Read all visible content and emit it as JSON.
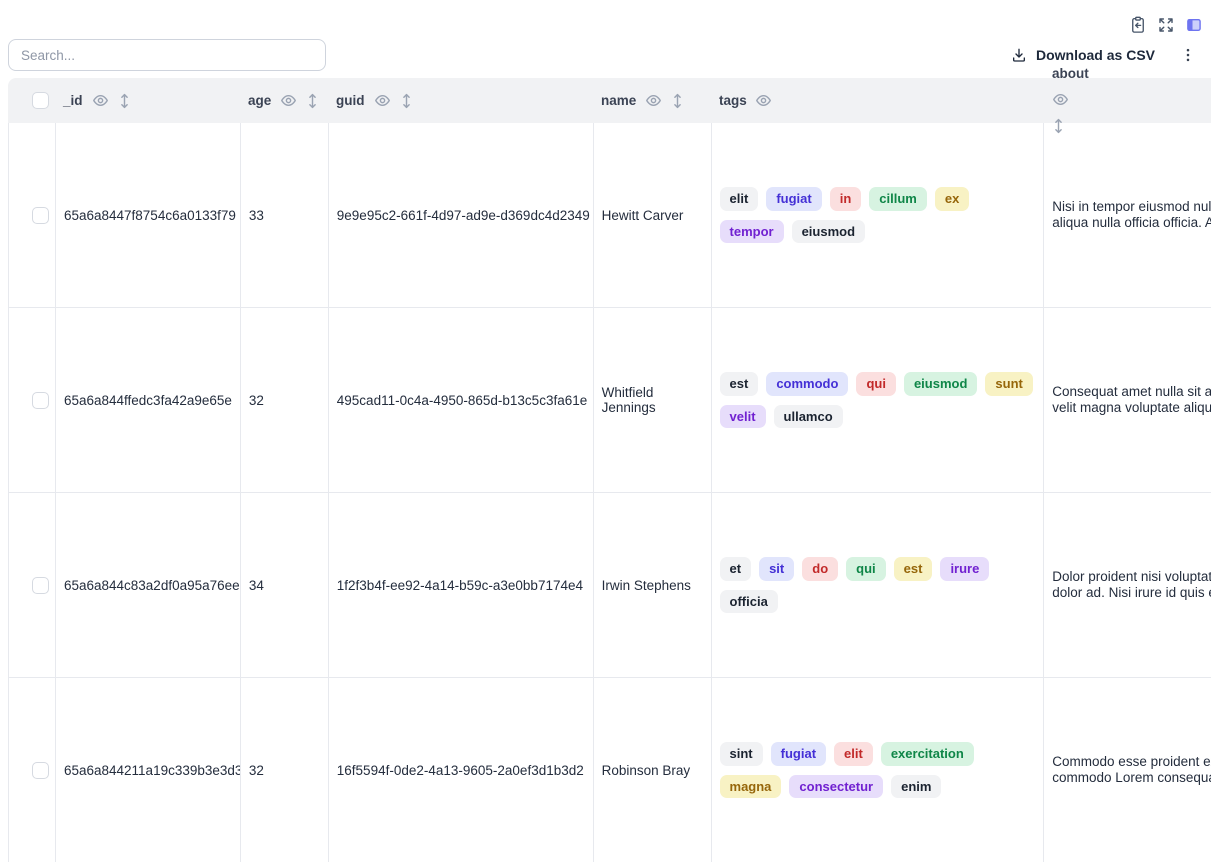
{
  "topbar": {
    "icons": [
      {
        "name": "paste-icon"
      },
      {
        "name": "expand-icon"
      },
      {
        "name": "table-view-icon"
      }
    ],
    "accent": "#6e74f0"
  },
  "toolbar": {
    "search_placeholder": "Search...",
    "download_label": "Download as CSV"
  },
  "table": {
    "columns": [
      {
        "key": "_id",
        "label": "_id",
        "sortable": true
      },
      {
        "key": "age",
        "label": "age",
        "sortable": true
      },
      {
        "key": "guid",
        "label": "guid",
        "sortable": true
      },
      {
        "key": "name",
        "label": "name",
        "sortable": true
      },
      {
        "key": "tags",
        "label": "tags",
        "sortable": false
      },
      {
        "key": "about",
        "label": "about",
        "sortable": true
      }
    ],
    "tag_palette": {
      "gray": {
        "bg": "#f1f2f4",
        "fg": "#1b2330"
      },
      "indigo": {
        "bg": "#e1e5fc",
        "fg": "#4430d6"
      },
      "red": {
        "bg": "#fbdfdf",
        "fg": "#c22a2a"
      },
      "green": {
        "bg": "#d7f3e1",
        "fg": "#0f8648"
      },
      "yellow": {
        "bg": "#f8f2c4",
        "fg": "#96660a"
      },
      "purple": {
        "bg": "#e7ddfb",
        "fg": "#7121d1"
      }
    },
    "rows": [
      {
        "_id": "65a6a8447f8754c6a0133f79",
        "age": "33",
        "guid": "9e9e95c2-661f-4d97-ad9e-d369dc4d2349",
        "name": "Hewitt Carver",
        "tags": [
          {
            "text": "elit",
            "color": "gray"
          },
          {
            "text": "fugiat",
            "color": "indigo"
          },
          {
            "text": "in",
            "color": "red"
          },
          {
            "text": "cillum",
            "color": "green"
          },
          {
            "text": "ex",
            "color": "yellow"
          },
          {
            "text": "tempor",
            "color": "purple"
          },
          {
            "text": "eiusmod",
            "color": "gray"
          }
        ],
        "about_lines": [
          "Nisi in tempor eiusmod null",
          "aliqua nulla officia officia. A"
        ]
      },
      {
        "_id": "65a6a844ffedc3fa42a9e65e",
        "age": "32",
        "guid": "495cad11-0c4a-4950-865d-b13c5c3fa61e",
        "name": "Whitfield Jennings",
        "tags": [
          {
            "text": "est",
            "color": "gray"
          },
          {
            "text": "commodo",
            "color": "indigo"
          },
          {
            "text": "qui",
            "color": "red"
          },
          {
            "text": "eiusmod",
            "color": "green"
          },
          {
            "text": "sunt",
            "color": "yellow"
          },
          {
            "text": "velit",
            "color": "purple"
          },
          {
            "text": "ullamco",
            "color": "gray"
          }
        ],
        "about_lines": [
          "Consequat amet nulla sit au",
          "velit magna voluptate aliqu"
        ]
      },
      {
        "_id": "65a6a844c83a2df0a95a76ee",
        "age": "34",
        "guid": "1f2f3b4f-ee92-4a14-b59c-a3e0bb7174e4",
        "name": "Irwin Stephens",
        "tags": [
          {
            "text": "et",
            "color": "gray"
          },
          {
            "text": "sit",
            "color": "indigo"
          },
          {
            "text": "do",
            "color": "red"
          },
          {
            "text": "qui",
            "color": "green"
          },
          {
            "text": "est",
            "color": "yellow"
          },
          {
            "text": "irure",
            "color": "purple"
          },
          {
            "text": "officia",
            "color": "gray"
          }
        ],
        "about_lines": [
          "Dolor proident nisi voluptat",
          "dolor ad. Nisi irure id quis e"
        ]
      },
      {
        "_id": "65a6a844211a19c339b3e3d3",
        "age": "32",
        "guid": "16f5594f-0de2-4a13-9605-2a0ef3d1b3d2",
        "name": "Robinson Bray",
        "tags": [
          {
            "text": "sint",
            "color": "gray"
          },
          {
            "text": "fugiat",
            "color": "indigo"
          },
          {
            "text": "elit",
            "color": "red"
          },
          {
            "text": "exercitation",
            "color": "green"
          },
          {
            "text": "magna",
            "color": "yellow"
          },
          {
            "text": "consectetur",
            "color": "purple"
          },
          {
            "text": "enim",
            "color": "gray"
          }
        ],
        "about_lines": [
          "Commodo esse proident ex",
          "commodo Lorem consequa"
        ]
      }
    ]
  }
}
